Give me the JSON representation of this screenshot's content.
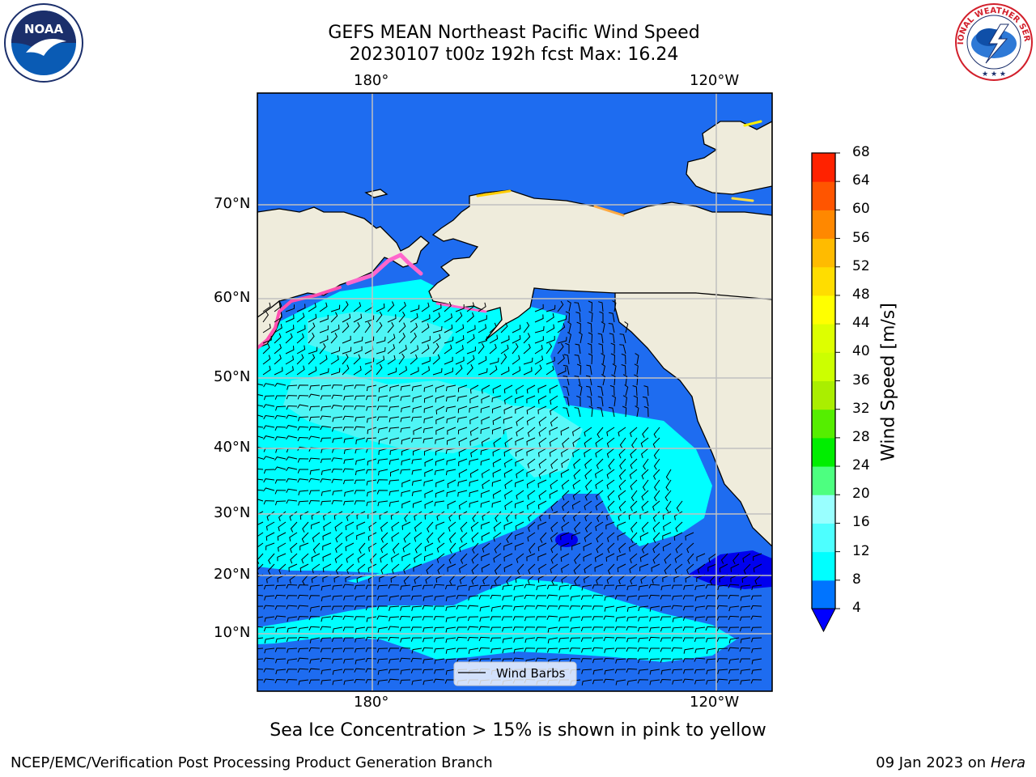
{
  "title_line1": "GEFS MEAN Northeast Pacific Wind Speed",
  "title_line2": "20230107 t00z 192h fcst   Max: 16.24",
  "lon_labels_top": [
    "180°",
    "120°W"
  ],
  "lon_labels_bottom": [
    "180°",
    "120°W"
  ],
  "lat_labels": [
    "70°N",
    "60°N",
    "50°N",
    "40°N",
    "30°N",
    "20°N",
    "10°N"
  ],
  "legend_label": "Wind Barbs",
  "caption": "Sea Ice Concentration > 15% is shown in pink to yellow",
  "footer_left": "NCEP/EMC/Verification Post Processing Product Generation Branch",
  "footer_date": "09 Jan 2023 on ",
  "footer_machine": "Hera",
  "colorbar": {
    "title": "Wind Speed [m/s]",
    "ticks": [
      "4",
      "8",
      "12",
      "16",
      "20",
      "24",
      "28",
      "32",
      "36",
      "40",
      "44",
      "48",
      "52",
      "56",
      "60",
      "64",
      "68"
    ],
    "colors": [
      "#0074ff",
      "#00ffff",
      "#4dffff",
      "#99ffff",
      "#4dff80",
      "#00ee00",
      "#55ee00",
      "#aaee00",
      "#ccff00",
      "#ddff00",
      "#ffff00",
      "#ffdd00",
      "#ffbb00",
      "#ff8800",
      "#ff5500",
      "#ff2200"
    ],
    "under_color": "#0000ff"
  },
  "logos": {
    "left": "NOAA",
    "right": "NATIONAL WEATHER SERVICE"
  },
  "colors": {
    "land": "#efecdc",
    "grid": "#c0c0c0",
    "ocean_low": "#1e6cf0",
    "ocean_mid": "#00ffff",
    "ocean_high": "#4ff5f5",
    "calm": "#0000ee"
  }
}
